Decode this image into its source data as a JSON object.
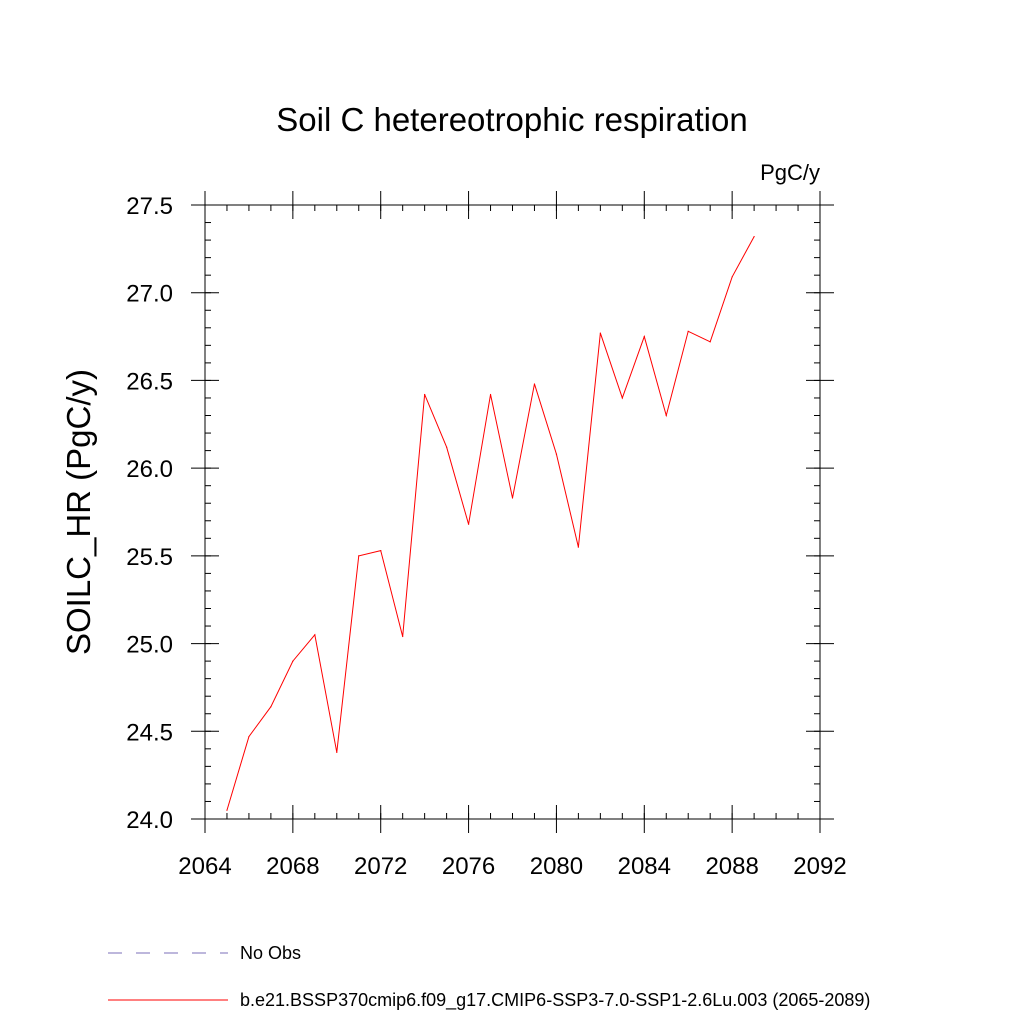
{
  "chart_data": {
    "type": "line",
    "title": "Soil C hetereotrophic respiration",
    "units_label": "PgC/y",
    "xlabel": "",
    "ylabel": "SOILC_HR  (PgC/y)",
    "xlim": [
      2064,
      2092
    ],
    "ylim": [
      24.0,
      27.5
    ],
    "x_ticks": [
      2064,
      2068,
      2072,
      2076,
      2080,
      2084,
      2088,
      2092
    ],
    "y_ticks": [
      "24.0",
      "24.5",
      "25.0",
      "25.5",
      "26.0",
      "26.5",
      "27.0",
      "27.5"
    ],
    "x_minor_step": 1,
    "y_minor_step": 0.1,
    "grid": false,
    "series": [
      {
        "name": "b.e21.BSSP370cmip6.f09_g17.CMIP6-SSP3-7.0-SSP1-2.6Lu.003 (2065-2089)",
        "color": "#ff0000",
        "x": [
          2065,
          2066,
          2067,
          2068,
          2069,
          2070,
          2071,
          2072,
          2073,
          2074,
          2075,
          2076,
          2077,
          2078,
          2079,
          2080,
          2081,
          2082,
          2083,
          2084,
          2085,
          2086,
          2087,
          2088,
          2089
        ],
        "values": [
          24.05,
          24.47,
          24.64,
          24.9,
          25.05,
          24.38,
          25.5,
          25.53,
          25.04,
          26.42,
          26.12,
          25.68,
          26.42,
          25.83,
          26.48,
          26.08,
          25.55,
          26.77,
          26.4,
          26.75,
          26.3,
          26.78,
          26.72,
          27.09,
          27.32
        ]
      }
    ],
    "legend": [
      {
        "label": "No Obs",
        "style": "dashed",
        "color": "#7b6fb8"
      },
      {
        "label": "b.e21.BSSP370cmip6.f09_g17.CMIP6-SSP3-7.0-SSP1-2.6Lu.003 (2065-2089)",
        "style": "solid",
        "color": "#ff0000"
      }
    ]
  }
}
